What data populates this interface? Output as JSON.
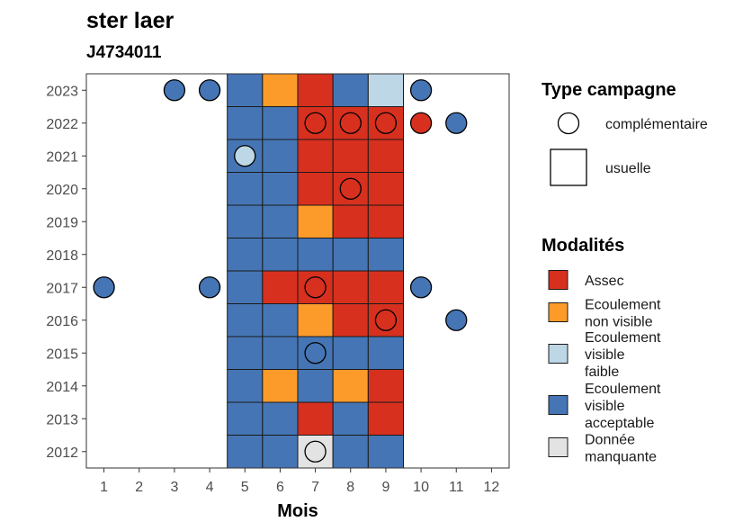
{
  "chart_data": {
    "type": "heatmap",
    "title": "ster laer",
    "subtitle": "J4734011",
    "xlabel": "Mois",
    "ylabel": "",
    "x_ticks": [
      1,
      2,
      3,
      4,
      5,
      6,
      7,
      8,
      9,
      10,
      11,
      12
    ],
    "y_ticks": [
      2012,
      2013,
      2014,
      2015,
      2016,
      2017,
      2018,
      2019,
      2020,
      2021,
      2022,
      2023
    ],
    "xlim": [
      0.5,
      12.5
    ],
    "ylim": [
      2011.5,
      2023.5
    ],
    "colors": {
      "assec": "#d7301f",
      "ecoulement_non_visible": "#fd9b2a",
      "ecoulement_faible": "#bdd7e7",
      "ecoulement_acceptable": "#4575b4",
      "donnee_manquante": "#e3e3e3"
    },
    "legend_shape": {
      "title": "Type campagne",
      "items": [
        {
          "key": "complementaire",
          "label": "complémentaire",
          "shape": "circle"
        },
        {
          "key": "usuelle",
          "label": "usuelle",
          "shape": "square"
        }
      ]
    },
    "legend_fill": {
      "title": "Modalités",
      "items": [
        {
          "key": "assec",
          "lines": [
            "Assec"
          ]
        },
        {
          "key": "ecoulement_non_visible",
          "lines": [
            "Ecoulement",
            "non visible"
          ]
        },
        {
          "key": "ecoulement_faible",
          "lines": [
            "Ecoulement",
            "visible",
            "faible"
          ]
        },
        {
          "key": "ecoulement_acceptable",
          "lines": [
            "Ecoulement",
            "visible",
            "acceptable"
          ]
        },
        {
          "key": "donnee_manquante",
          "lines": [
            "Donnée",
            "manquante"
          ]
        }
      ]
    },
    "tiles": [
      {
        "year": 2023,
        "month": 5,
        "modalite": "ecoulement_acceptable"
      },
      {
        "year": 2023,
        "month": 6,
        "modalite": "ecoulement_non_visible"
      },
      {
        "year": 2023,
        "month": 7,
        "modalite": "assec"
      },
      {
        "year": 2023,
        "month": 8,
        "modalite": "ecoulement_acceptable"
      },
      {
        "year": 2023,
        "month": 9,
        "modalite": "ecoulement_faible"
      },
      {
        "year": 2022,
        "month": 5,
        "modalite": "ecoulement_acceptable"
      },
      {
        "year": 2022,
        "month": 6,
        "modalite": "ecoulement_acceptable"
      },
      {
        "year": 2022,
        "month": 7,
        "modalite": "assec"
      },
      {
        "year": 2022,
        "month": 8,
        "modalite": "assec"
      },
      {
        "year": 2022,
        "month": 9,
        "modalite": "assec"
      },
      {
        "year": 2021,
        "month": 5,
        "modalite": "ecoulement_acceptable"
      },
      {
        "year": 2021,
        "month": 6,
        "modalite": "ecoulement_acceptable"
      },
      {
        "year": 2021,
        "month": 7,
        "modalite": "assec"
      },
      {
        "year": 2021,
        "month": 8,
        "modalite": "assec"
      },
      {
        "year": 2021,
        "month": 9,
        "modalite": "assec"
      },
      {
        "year": 2020,
        "month": 5,
        "modalite": "ecoulement_acceptable"
      },
      {
        "year": 2020,
        "month": 6,
        "modalite": "ecoulement_acceptable"
      },
      {
        "year": 2020,
        "month": 7,
        "modalite": "assec"
      },
      {
        "year": 2020,
        "month": 8,
        "modalite": "assec"
      },
      {
        "year": 2020,
        "month": 9,
        "modalite": "assec"
      },
      {
        "year": 2019,
        "month": 5,
        "modalite": "ecoulement_acceptable"
      },
      {
        "year": 2019,
        "month": 6,
        "modalite": "ecoulement_acceptable"
      },
      {
        "year": 2019,
        "month": 7,
        "modalite": "ecoulement_non_visible"
      },
      {
        "year": 2019,
        "month": 8,
        "modalite": "assec"
      },
      {
        "year": 2019,
        "month": 9,
        "modalite": "assec"
      },
      {
        "year": 2018,
        "month": 5,
        "modalite": "ecoulement_acceptable"
      },
      {
        "year": 2018,
        "month": 6,
        "modalite": "ecoulement_acceptable"
      },
      {
        "year": 2018,
        "month": 7,
        "modalite": "ecoulement_acceptable"
      },
      {
        "year": 2018,
        "month": 8,
        "modalite": "ecoulement_acceptable"
      },
      {
        "year": 2018,
        "month": 9,
        "modalite": "ecoulement_acceptable"
      },
      {
        "year": 2017,
        "month": 5,
        "modalite": "ecoulement_acceptable"
      },
      {
        "year": 2017,
        "month": 6,
        "modalite": "assec"
      },
      {
        "year": 2017,
        "month": 7,
        "modalite": "assec"
      },
      {
        "year": 2017,
        "month": 8,
        "modalite": "assec"
      },
      {
        "year": 2017,
        "month": 9,
        "modalite": "assec"
      },
      {
        "year": 2016,
        "month": 5,
        "modalite": "ecoulement_acceptable"
      },
      {
        "year": 2016,
        "month": 6,
        "modalite": "ecoulement_acceptable"
      },
      {
        "year": 2016,
        "month": 7,
        "modalite": "ecoulement_non_visible"
      },
      {
        "year": 2016,
        "month": 8,
        "modalite": "assec"
      },
      {
        "year": 2016,
        "month": 9,
        "modalite": "assec"
      },
      {
        "year": 2015,
        "month": 5,
        "modalite": "ecoulement_acceptable"
      },
      {
        "year": 2015,
        "month": 6,
        "modalite": "ecoulement_acceptable"
      },
      {
        "year": 2015,
        "month": 7,
        "modalite": "ecoulement_acceptable"
      },
      {
        "year": 2015,
        "month": 8,
        "modalite": "ecoulement_acceptable"
      },
      {
        "year": 2015,
        "month": 9,
        "modalite": "ecoulement_acceptable"
      },
      {
        "year": 2014,
        "month": 5,
        "modalite": "ecoulement_acceptable"
      },
      {
        "year": 2014,
        "month": 6,
        "modalite": "ecoulement_non_visible"
      },
      {
        "year": 2014,
        "month": 7,
        "modalite": "ecoulement_acceptable"
      },
      {
        "year": 2014,
        "month": 8,
        "modalite": "ecoulement_non_visible"
      },
      {
        "year": 2014,
        "month": 9,
        "modalite": "assec"
      },
      {
        "year": 2013,
        "month": 5,
        "modalite": "ecoulement_acceptable"
      },
      {
        "year": 2013,
        "month": 6,
        "modalite": "ecoulement_acceptable"
      },
      {
        "year": 2013,
        "month": 7,
        "modalite": "assec"
      },
      {
        "year": 2013,
        "month": 8,
        "modalite": "ecoulement_acceptable"
      },
      {
        "year": 2013,
        "month": 9,
        "modalite": "assec"
      },
      {
        "year": 2012,
        "month": 5,
        "modalite": "ecoulement_acceptable"
      },
      {
        "year": 2012,
        "month": 6,
        "modalite": "ecoulement_acceptable"
      },
      {
        "year": 2012,
        "month": 7,
        "modalite": "donnee_manquante"
      },
      {
        "year": 2012,
        "month": 8,
        "modalite": "ecoulement_acceptable"
      },
      {
        "year": 2012,
        "month": 9,
        "modalite": "ecoulement_acceptable"
      }
    ],
    "points": [
      {
        "year": 2023,
        "month": 3,
        "modalite": "ecoulement_acceptable"
      },
      {
        "year": 2023,
        "month": 4,
        "modalite": "ecoulement_acceptable"
      },
      {
        "year": 2023,
        "month": 10,
        "modalite": "ecoulement_acceptable"
      },
      {
        "year": 2022,
        "month": 7,
        "modalite": "assec"
      },
      {
        "year": 2022,
        "month": 8,
        "modalite": "assec"
      },
      {
        "year": 2022,
        "month": 9,
        "modalite": "assec"
      },
      {
        "year": 2022,
        "month": 10,
        "modalite": "assec"
      },
      {
        "year": 2022,
        "month": 11,
        "modalite": "ecoulement_acceptable"
      },
      {
        "year": 2021,
        "month": 5,
        "modalite": "ecoulement_faible"
      },
      {
        "year": 2020,
        "month": 8,
        "modalite": "assec"
      },
      {
        "year": 2017,
        "month": 1,
        "modalite": "ecoulement_acceptable"
      },
      {
        "year": 2017,
        "month": 4,
        "modalite": "ecoulement_acceptable"
      },
      {
        "year": 2017,
        "month": 7,
        "modalite": "assec"
      },
      {
        "year": 2017,
        "month": 10,
        "modalite": "ecoulement_acceptable"
      },
      {
        "year": 2016,
        "month": 9,
        "modalite": "assec"
      },
      {
        "year": 2016,
        "month": 11,
        "modalite": "ecoulement_acceptable"
      },
      {
        "year": 2015,
        "month": 7,
        "modalite": "ecoulement_acceptable"
      },
      {
        "year": 2012,
        "month": 7,
        "modalite": "donnee_manquante"
      }
    ]
  }
}
